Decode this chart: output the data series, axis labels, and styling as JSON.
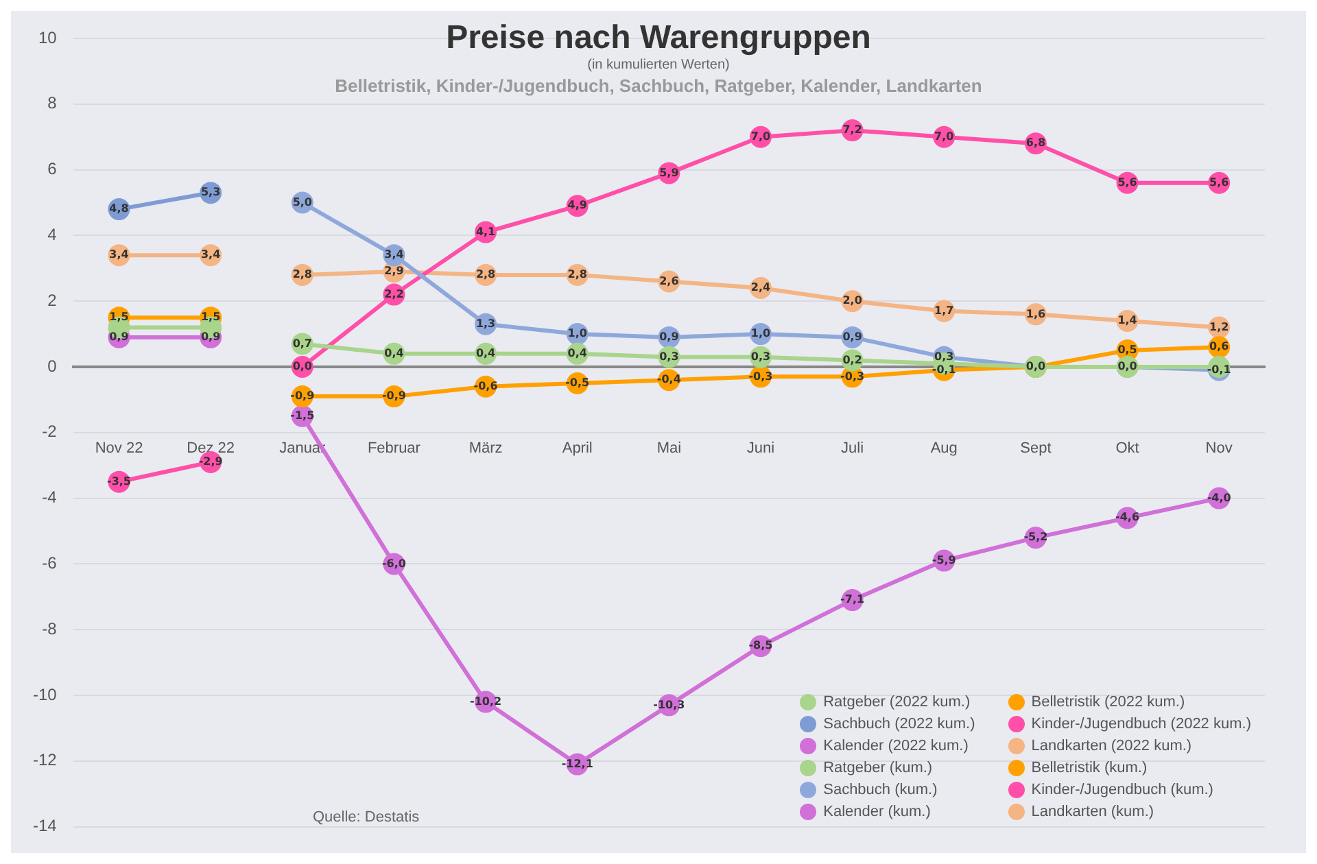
{
  "chart_data": {
    "type": "line",
    "title": "Preise nach Warengruppen",
    "subtitle": "(in kumulierten Werten)",
    "annotations": [
      "Belletristik, Kinder-/Jugendbuch, Sachbuch, Ratgeber, Kalender, Landkarten",
      "Quelle: Destatis"
    ],
    "categories": [
      "Nov 22",
      "Dez 22",
      "Januar",
      "Februar",
      "März",
      "April",
      "Mai",
      "Juni",
      "Juli",
      "Aug",
      "Sept",
      "Okt",
      "Nov"
    ],
    "series": [
      {
        "name": "Ratgeber (2022 kum.)",
        "color": "#a8d48c",
        "values": [
          1.2,
          1.2,
          null,
          null,
          null,
          null,
          null,
          null,
          null,
          null,
          null,
          null,
          null
        ],
        "value_labels": [
          null,
          null,
          null,
          null,
          null,
          null,
          null,
          null,
          null,
          null,
          null,
          null,
          null
        ]
      },
      {
        "name": "Belletristik (2022 kum.)",
        "color": "#ffa000",
        "values": [
          1.5,
          1.5,
          null,
          null,
          null,
          null,
          null,
          null,
          null,
          null,
          null,
          null,
          null
        ],
        "value_labels": [
          "1,5",
          "1,5",
          null,
          null,
          null,
          null,
          null,
          null,
          null,
          null,
          null,
          null,
          null
        ]
      },
      {
        "name": "Sachbuch (2022 kum.)",
        "color": "#7f9bd4",
        "values": [
          4.8,
          5.3,
          null,
          null,
          null,
          null,
          null,
          null,
          null,
          null,
          null,
          null,
          null
        ],
        "value_labels": [
          "4,8",
          "5,3",
          null,
          null,
          null,
          null,
          null,
          null,
          null,
          null,
          null,
          null,
          null
        ]
      },
      {
        "name": "Kinder-/Jugendbuch (2022 kum.)",
        "color": "#ff4fa8",
        "values": [
          -3.5,
          -2.9,
          null,
          null,
          null,
          null,
          null,
          null,
          null,
          null,
          null,
          null,
          null
        ],
        "value_labels": [
          "-3,5",
          "-2,9",
          null,
          null,
          null,
          null,
          null,
          null,
          null,
          null,
          null,
          null,
          null
        ]
      },
      {
        "name": "Kalender (2022 kum.)",
        "color": "#d070d8",
        "values": [
          0.9,
          0.9,
          null,
          null,
          null,
          null,
          null,
          null,
          null,
          null,
          null,
          null,
          null
        ],
        "value_labels": [
          "0,9",
          "0,9",
          null,
          null,
          null,
          null,
          null,
          null,
          null,
          null,
          null,
          null,
          null
        ]
      },
      {
        "name": "Landkarten (2022 kum.)",
        "color": "#f4b483",
        "values": [
          3.4,
          3.4,
          null,
          null,
          null,
          null,
          null,
          null,
          null,
          null,
          null,
          null,
          null
        ],
        "value_labels": [
          "3,4",
          "3,4",
          null,
          null,
          null,
          null,
          null,
          null,
          null,
          null,
          null,
          null,
          null
        ]
      },
      {
        "name": "Ratgeber (kum.)",
        "color": "#a8d48c",
        "values": [
          null,
          null,
          0.7,
          0.4,
          0.4,
          0.4,
          0.3,
          0.3,
          0.2,
          0.1,
          0.0,
          0.0,
          0.0
        ],
        "value_labels": [
          null,
          null,
          "0,7",
          "0,4",
          "0,4",
          "0,4",
          "0,3",
          "0,3",
          "0,2",
          null,
          null,
          null,
          null
        ]
      },
      {
        "name": "Belletristik (kum.)",
        "color": "#ffa000",
        "values": [
          null,
          null,
          -0.9,
          -0.9,
          -0.6,
          -0.5,
          -0.4,
          -0.3,
          -0.3,
          -0.1,
          0.0,
          0.5,
          0.6
        ],
        "value_labels": [
          null,
          null,
          "-0,9",
          "-0,9",
          "-0,6",
          "-0,5",
          "-0,4",
          "-0,3",
          "-0,3",
          "-0,1",
          null,
          "0,5",
          "0,6"
        ]
      },
      {
        "name": "Sachbuch (kum.)",
        "color": "#8fa8dc",
        "values": [
          null,
          null,
          5.0,
          3.4,
          1.3,
          1.0,
          0.9,
          1.0,
          0.9,
          0.3,
          0.0,
          0.0,
          -0.1
        ],
        "value_labels": [
          null,
          null,
          "5,0",
          "3,4",
          "1,3",
          "1,0",
          "0,9",
          "1,0",
          "0,9",
          "0,3",
          "0,0",
          "0,0",
          "-0,1"
        ]
      },
      {
        "name": "Kinder-/Jugendbuch (kum.)",
        "color": "#ff4fa8",
        "values": [
          null,
          null,
          0.0,
          2.2,
          4.1,
          4.9,
          5.9,
          7.0,
          7.2,
          7.0,
          6.8,
          5.6,
          5.6
        ],
        "value_labels": [
          null,
          null,
          "0,0",
          "2,2",
          "4,1",
          "4,9",
          "5,9",
          "7,0",
          "7,2",
          "7,0",
          "6,8",
          "5,6",
          "5,6"
        ]
      },
      {
        "name": "Kalender (kum.)",
        "color": "#d070d8",
        "values": [
          null,
          null,
          -1.5,
          -6.0,
          -10.2,
          -12.1,
          -10.3,
          -8.5,
          -7.1,
          -5.9,
          -5.2,
          -4.6,
          -4.0
        ],
        "value_labels": [
          null,
          null,
          "-1,5",
          "-6,0",
          "-10,2",
          "-12,1",
          "-10,3",
          "-8,5",
          "-7,1",
          "-5,9",
          "-5,2",
          "-4,6",
          "-4,0"
        ]
      },
      {
        "name": "Landkarten (kum.)",
        "color": "#f4b483",
        "values": [
          null,
          null,
          2.8,
          2.9,
          2.8,
          2.8,
          2.6,
          2.4,
          2.0,
          1.7,
          1.6,
          1.4,
          1.2
        ],
        "value_labels": [
          null,
          null,
          "2,8",
          "2,9",
          "2,8",
          "2,8",
          "2,6",
          "2,4",
          "2,0",
          "1,7",
          "1,6",
          "1,4",
          "1,2"
        ]
      }
    ],
    "ylim": [
      -14,
      10
    ],
    "yticks": [
      -14,
      -12,
      -10,
      -8,
      -6,
      -4,
      -2,
      0,
      2,
      4,
      6,
      8,
      10
    ],
    "grid": "y",
    "legend": "bottom right",
    "marker": "circle",
    "line_style": "solid"
  }
}
